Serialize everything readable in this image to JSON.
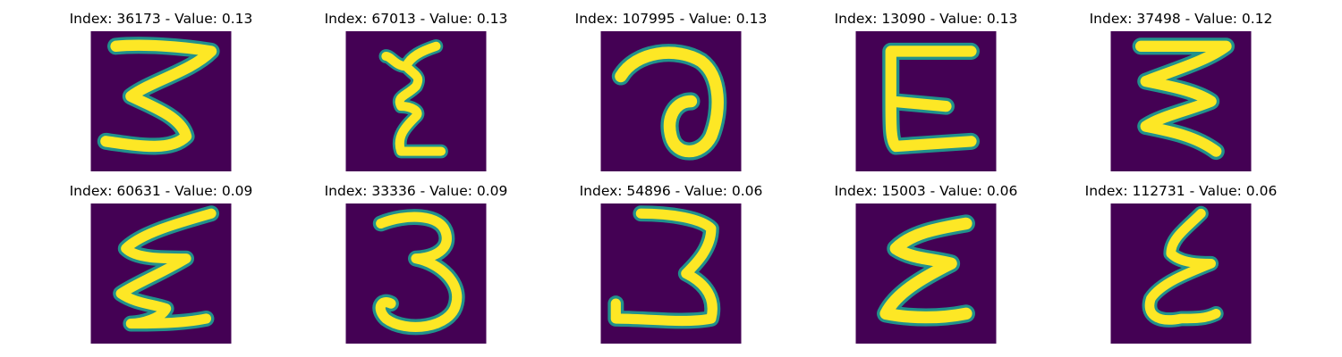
{
  "colors": {
    "background": "#440154",
    "stroke_edge": "#21918c",
    "stroke_core": "#fde725"
  },
  "panels": [
    {
      "title": "Index: 36173 - Value: 0.13",
      "glyph": "three-like-z"
    },
    {
      "title": "Index: 67013 - Value: 0.13",
      "glyph": "thin-epsilon"
    },
    {
      "title": "Index: 107995 - Value: 0.13",
      "glyph": "a-curl"
    },
    {
      "title": "Index: 13090 - Value: 0.13",
      "glyph": "block-e"
    },
    {
      "title": "Index: 37498 - Value: 0.12",
      "glyph": "zigzag-three"
    },
    {
      "title": "Index: 60631 - Value: 0.09",
      "glyph": "script-epsilon"
    },
    {
      "title": "Index: 33336 - Value: 0.09",
      "glyph": "three"
    },
    {
      "title": "Index: 54896 - Value: 0.06",
      "glyph": "wide-three"
    },
    {
      "title": "Index: 15003 - Value: 0.06",
      "glyph": "bold-epsilon"
    },
    {
      "title": "Index: 112731 - Value: 0.06",
      "glyph": "slanted-epsilon"
    }
  ]
}
